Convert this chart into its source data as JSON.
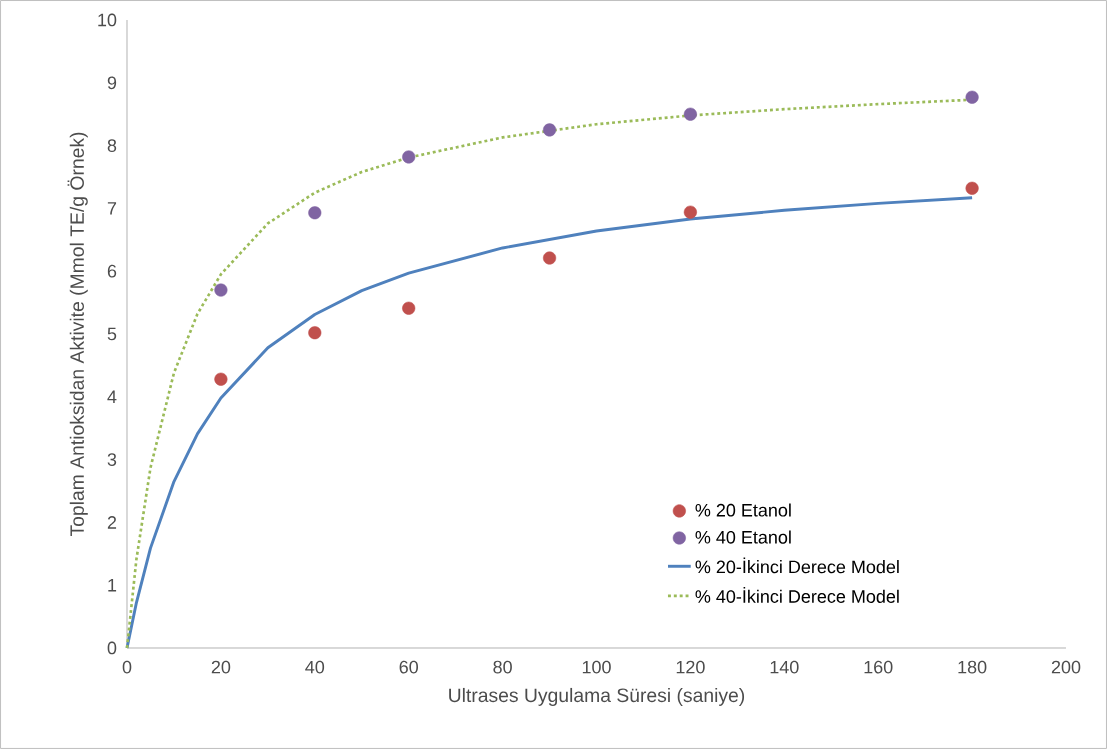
{
  "chart_data": {
    "type": "scatter",
    "xlabel": "Ultrases Uygulama Süresi (saniye)",
    "ylabel": "Toplam Antioksidan Aktivite (Mmol TE/g Örnek)",
    "xlim": [
      0,
      200
    ],
    "ylim": [
      0,
      10
    ],
    "xticks": [
      0,
      20,
      40,
      60,
      80,
      100,
      120,
      140,
      160,
      180,
      200
    ],
    "yticks": [
      0,
      1,
      2,
      3,
      4,
      5,
      6,
      7,
      8,
      9,
      10
    ],
    "grid": false,
    "legend": "bottom right",
    "series": [
      {
        "name": "% 20 Etanol",
        "color": "#c0504d",
        "x": [
          20,
          40,
          60,
          90,
          120,
          180
        ],
        "values": [
          4.28,
          5.02,
          5.41,
          6.21,
          6.94,
          7.32
        ]
      },
      {
        "name": "% 40 Etanol",
        "color": "#8064a2",
        "x": [
          20,
          40,
          60,
          90,
          120,
          180
        ],
        "values": [
          5.7,
          6.93,
          7.82,
          8.25,
          8.5,
          8.77
        ]
      },
      {
        "name": "% 20-İkinci Derece Model",
        "type": "line",
        "line_style": "solid",
        "color": "#4f81bd",
        "x": [
          0,
          2,
          5,
          10,
          15,
          20,
          30,
          40,
          50,
          60,
          80,
          100,
          120,
          140,
          160,
          180
        ],
        "values": [
          0,
          0.72,
          1.59,
          2.65,
          3.41,
          3.98,
          4.78,
          5.31,
          5.69,
          5.97,
          6.37,
          6.64,
          6.83,
          6.97,
          7.08,
          7.17
        ]
      },
      {
        "name": "% 40-İkinci Derece Model",
        "type": "line",
        "line_style": "dotted",
        "color": "#9bbb59",
        "x": [
          0,
          2,
          5,
          10,
          15,
          20,
          30,
          40,
          50,
          60,
          80,
          100,
          120,
          140,
          160,
          180
        ],
        "values": [
          0,
          1.41,
          2.87,
          4.38,
          5.32,
          5.95,
          6.76,
          7.25,
          7.58,
          7.81,
          8.13,
          8.34,
          8.48,
          8.58,
          8.66,
          8.73
        ]
      }
    ]
  }
}
